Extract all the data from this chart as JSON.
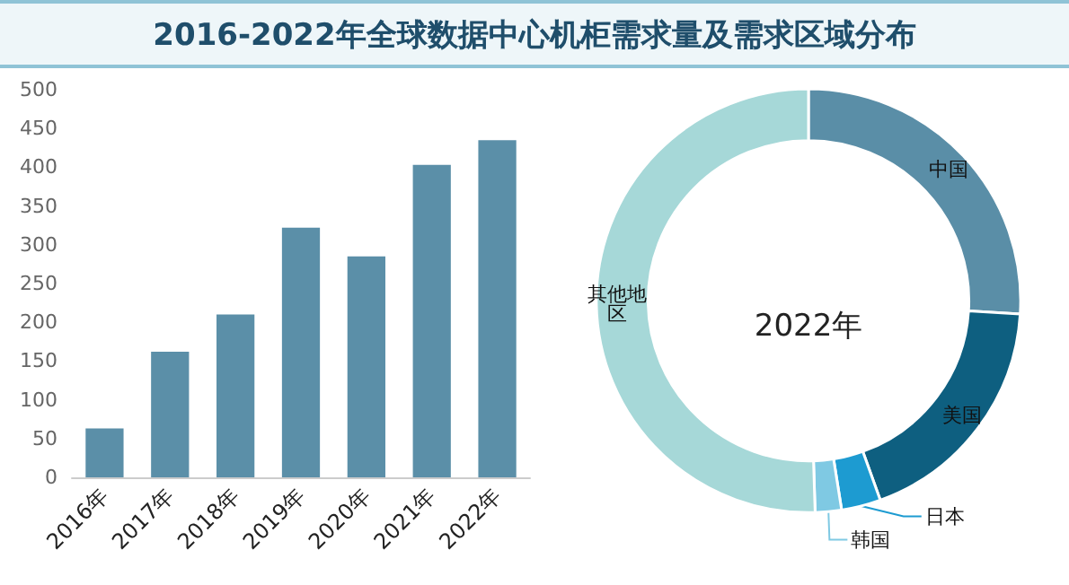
{
  "chart_data": [
    {
      "type": "bar",
      "title": "2016-2022年全球数据中心机柜需求量及需求区域分布",
      "categories": [
        "2016年",
        "2017年",
        "2018年",
        "2019年",
        "2020年",
        "2021年",
        "2022年"
      ],
      "values": [
        63,
        162,
        210,
        322,
        285,
        403,
        435
      ],
      "color": "#5b8fa8",
      "ylim": [
        0,
        500
      ],
      "yticks": [
        0,
        50,
        100,
        150,
        200,
        250,
        300,
        350,
        400,
        450,
        500
      ],
      "grid": false,
      "legend": false
    },
    {
      "type": "donut",
      "title": "2022年",
      "categories": [
        "中国",
        "美国",
        "日本",
        "韩国",
        "其他地区"
      ],
      "values": [
        26,
        18.5,
        3,
        2,
        50.5
      ],
      "colors": [
        "#5a8ea7",
        "#0e5f80",
        "#1d9bd1",
        "#7fc9e3",
        "#a6d8d8"
      ],
      "legend": false
    }
  ]
}
